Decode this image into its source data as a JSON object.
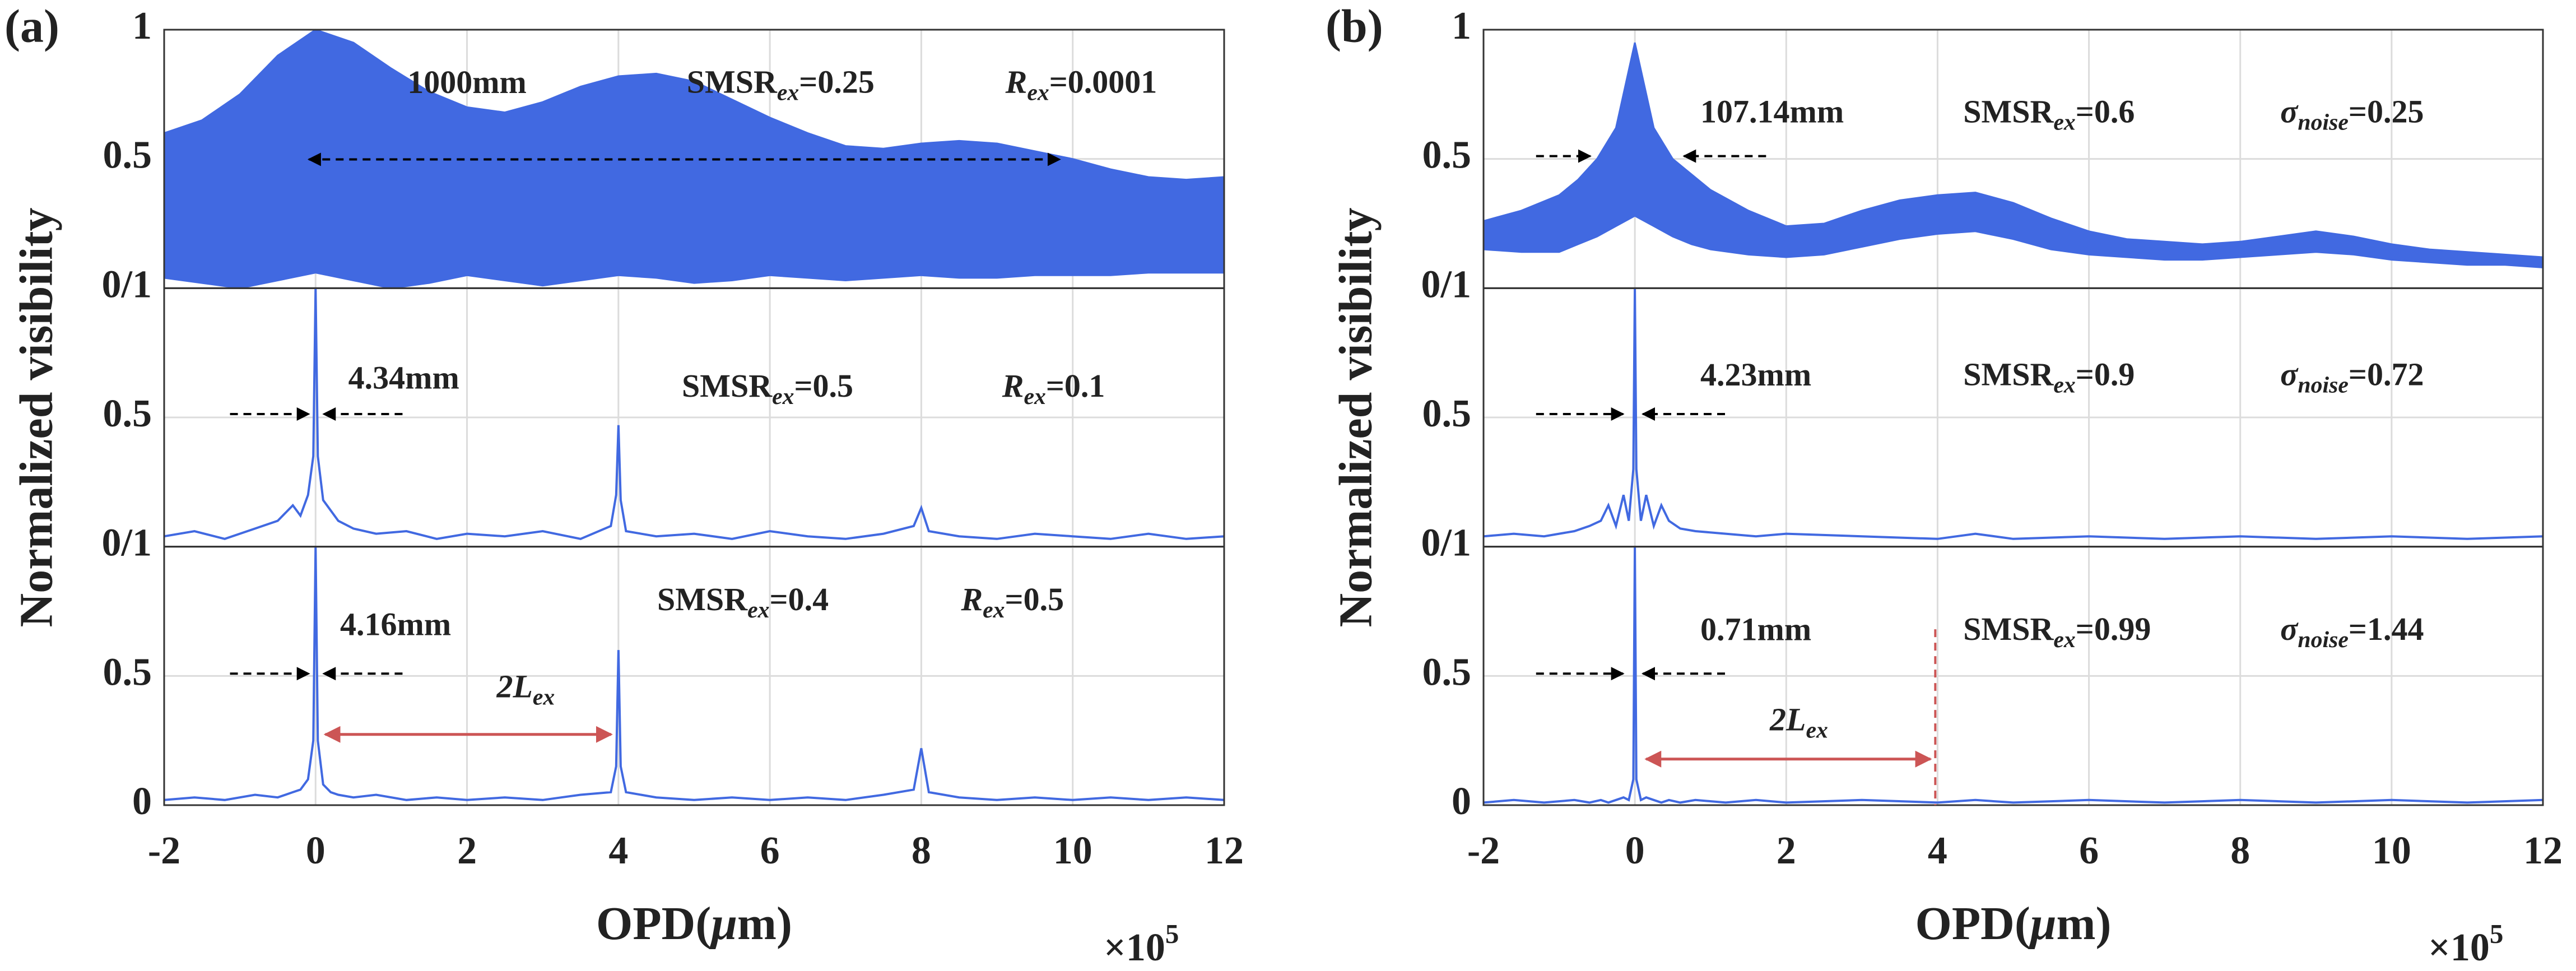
{
  "chart_data": [
    {
      "type": "stacked",
      "label": "(a)",
      "ylabel": "Normalized visibility",
      "xlabel": {
        "pre": "OPD(",
        "symbol": "μ",
        "post": "m)"
      },
      "x_multiplier": {
        "base": "×10",
        "exponent": "5"
      },
      "xlim": [
        -2,
        12
      ],
      "xticks": [
        -2,
        0,
        2,
        4,
        6,
        8,
        10,
        12
      ],
      "grid": true,
      "subplots": [
        {
          "type": "band",
          "color": "#4169e1",
          "ylim": [
            0,
            1
          ],
          "yticks": [
            {
              "value": 0,
              "label": "0/1"
            },
            0.5,
            1
          ],
          "x": [
            -2,
            -1.5,
            -1,
            -0.5,
            0,
            0.5,
            1,
            1.5,
            2,
            2.5,
            3,
            3.5,
            4,
            4.5,
            5,
            5.5,
            6,
            6.5,
            7,
            7.5,
            8,
            8.5,
            9,
            9.5,
            10,
            10.5,
            11,
            11.5,
            12
          ],
          "upper": [
            0.6,
            0.65,
            0.75,
            0.9,
            1,
            0.95,
            0.85,
            0.76,
            0.7,
            0.68,
            0.72,
            0.78,
            0.82,
            0.83,
            0.8,
            0.73,
            0.66,
            0.6,
            0.55,
            0.54,
            0.56,
            0.57,
            0.56,
            0.53,
            0.5,
            0.46,
            0.43,
            0.42,
            0.43
          ],
          "lower": [
            0.04,
            0.02,
            0,
            0.03,
            0.06,
            0.03,
            0,
            0.02,
            0.05,
            0.03,
            0.01,
            0.03,
            0.05,
            0.04,
            0.02,
            0.03,
            0.05,
            0.04,
            0.03,
            0.04,
            0.05,
            0.04,
            0.04,
            0.05,
            0.05,
            0.05,
            0.06,
            0.06,
            0.06
          ],
          "width_label": "1000mm",
          "smsr": {
            "text": "SMSR",
            "sub": "ex",
            "value": "=0.25"
          },
          "param": {
            "symbol": "R",
            "sub": "ex",
            "value": "=0.0001"
          }
        },
        {
          "type": "line",
          "color": "#4169e1",
          "ylim": [
            0,
            1
          ],
          "yticks": [
            {
              "value": 0,
              "label": "0/1"
            },
            0.5
          ],
          "x": [
            -2,
            -1.6,
            -1.2,
            -0.8,
            -0.5,
            -0.3,
            -0.2,
            -0.1,
            -0.03,
            0,
            0.03,
            0.1,
            0.2,
            0.3,
            0.5,
            0.8,
            1.2,
            1.6,
            2,
            2.5,
            3,
            3.5,
            3.9,
            3.97,
            4,
            4.03,
            4.1,
            4.5,
            5,
            5.5,
            6,
            6.5,
            7,
            7.5,
            7.9,
            8,
            8.1,
            8.5,
            9,
            9.5,
            10,
            10.5,
            11,
            11.5,
            12
          ],
          "values": [
            0.04,
            0.06,
            0.03,
            0.07,
            0.1,
            0.16,
            0.12,
            0.2,
            0.35,
            1,
            0.35,
            0.18,
            0.14,
            0.1,
            0.07,
            0.05,
            0.06,
            0.03,
            0.05,
            0.04,
            0.06,
            0.03,
            0.08,
            0.2,
            0.47,
            0.18,
            0.06,
            0.04,
            0.05,
            0.03,
            0.06,
            0.04,
            0.03,
            0.05,
            0.08,
            0.15,
            0.06,
            0.04,
            0.03,
            0.05,
            0.04,
            0.03,
            0.05,
            0.03,
            0.04
          ],
          "width_label": "4.34mm",
          "smsr": {
            "text": "SMSR",
            "sub": "ex",
            "value": "=0.5"
          },
          "param": {
            "symbol": "R",
            "sub": "ex",
            "value": "=0.1"
          }
        },
        {
          "type": "line",
          "color": "#4169e1",
          "ylim": [
            0,
            1
          ],
          "yticks": [
            0,
            0.5
          ],
          "x": [
            -2,
            -1.6,
            -1.2,
            -0.8,
            -0.5,
            -0.3,
            -0.2,
            -0.1,
            -0.03,
            0,
            0.03,
            0.1,
            0.2,
            0.3,
            0.5,
            0.8,
            1.2,
            1.6,
            2,
            2.5,
            3,
            3.5,
            3.9,
            3.97,
            4,
            4.03,
            4.1,
            4.5,
            5,
            5.5,
            6,
            6.5,
            7,
            7.5,
            7.9,
            8,
            8.1,
            8.5,
            9,
            9.5,
            10,
            10.5,
            11,
            11.5,
            12
          ],
          "values": [
            0.02,
            0.03,
            0.02,
            0.04,
            0.03,
            0.05,
            0.06,
            0.1,
            0.25,
            1,
            0.25,
            0.08,
            0.05,
            0.04,
            0.03,
            0.04,
            0.02,
            0.03,
            0.02,
            0.03,
            0.02,
            0.04,
            0.05,
            0.15,
            0.6,
            0.15,
            0.05,
            0.03,
            0.02,
            0.03,
            0.02,
            0.03,
            0.02,
            0.04,
            0.06,
            0.22,
            0.05,
            0.03,
            0.02,
            0.03,
            0.02,
            0.03,
            0.02,
            0.03,
            0.02
          ],
          "width_label": "4.16mm",
          "smsr": {
            "text": "SMSR",
            "sub": "ex",
            "value": "=0.4"
          },
          "param": {
            "symbol": "R",
            "sub": "ex",
            "value": "=0.5"
          },
          "span_label": {
            "text": "2L",
            "sub": "ex"
          }
        }
      ]
    },
    {
      "type": "stacked",
      "label": "(b)",
      "ylabel": "Normalized visibility",
      "xlabel": {
        "pre": "OPD(",
        "symbol": "μ",
        "post": "m)"
      },
      "x_multiplier": {
        "base": "×10",
        "exponent": "5"
      },
      "xlim": [
        -2,
        12
      ],
      "xticks": [
        -2,
        0,
        2,
        4,
        6,
        8,
        10,
        12
      ],
      "grid": true,
      "subplots": [
        {
          "type": "band",
          "color": "#4169e1",
          "ylim": [
            0,
            1
          ],
          "yticks": [
            {
              "value": 0,
              "label": "0/1"
            },
            0.5,
            1
          ],
          "x": [
            -2,
            -1.5,
            -1,
            -0.75,
            -0.5,
            -0.25,
            0,
            0.25,
            0.5,
            0.75,
            1,
            1.5,
            2,
            2.5,
            3,
            3.5,
            4,
            4.5,
            5,
            5.5,
            6,
            6.5,
            7,
            7.5,
            8,
            8.5,
            9,
            9.5,
            10,
            10.5,
            11,
            11.5,
            12
          ],
          "upper": [
            0.26,
            0.3,
            0.36,
            0.42,
            0.5,
            0.62,
            0.95,
            0.62,
            0.5,
            0.44,
            0.38,
            0.3,
            0.24,
            0.25,
            0.3,
            0.34,
            0.36,
            0.37,
            0.33,
            0.27,
            0.22,
            0.19,
            0.18,
            0.17,
            0.18,
            0.2,
            0.22,
            0.2,
            0.17,
            0.15,
            0.14,
            0.13,
            0.12
          ],
          "lower": [
            0.15,
            0.14,
            0.14,
            0.17,
            0.2,
            0.24,
            0.28,
            0.24,
            0.2,
            0.17,
            0.15,
            0.13,
            0.12,
            0.13,
            0.16,
            0.19,
            0.21,
            0.22,
            0.19,
            0.15,
            0.13,
            0.12,
            0.11,
            0.11,
            0.12,
            0.13,
            0.14,
            0.13,
            0.11,
            0.1,
            0.09,
            0.09,
            0.08
          ],
          "width_label": "107.14mm",
          "smsr": {
            "text": "SMSR",
            "sub": "ex",
            "value": "=0.6"
          },
          "param": {
            "symbol": "σ",
            "sub": "noise",
            "value": "=0.25"
          }
        },
        {
          "type": "line",
          "color": "#4169e1",
          "ylim": [
            0,
            1
          ],
          "yticks": [
            {
              "value": 0,
              "label": "0/1"
            },
            0.5
          ],
          "x": [
            -2,
            -1.6,
            -1.2,
            -0.8,
            -0.6,
            -0.45,
            -0.35,
            -0.25,
            -0.15,
            -0.08,
            -0.02,
            0,
            0.02,
            0.08,
            0.15,
            0.25,
            0.35,
            0.45,
            0.6,
            0.8,
            1.2,
            1.6,
            2,
            3,
            4,
            4.5,
            5,
            6,
            7,
            8,
            9,
            10,
            11,
            12
          ],
          "values": [
            0.04,
            0.05,
            0.04,
            0.06,
            0.08,
            0.1,
            0.16,
            0.08,
            0.2,
            0.1,
            0.3,
            1,
            0.3,
            0.1,
            0.2,
            0.08,
            0.16,
            0.1,
            0.07,
            0.06,
            0.05,
            0.04,
            0.05,
            0.04,
            0.03,
            0.05,
            0.03,
            0.04,
            0.03,
            0.04,
            0.03,
            0.04,
            0.03,
            0.04
          ],
          "width_label": "4.23mm",
          "smsr": {
            "text": "SMSR",
            "sub": "ex",
            "value": "=0.9"
          },
          "param": {
            "symbol": "σ",
            "sub": "noise",
            "value": "=0.72"
          }
        },
        {
          "type": "line",
          "color": "#4169e1",
          "ylim": [
            0,
            1
          ],
          "yticks": [
            0,
            0.5
          ],
          "x": [
            -2,
            -1.6,
            -1.2,
            -0.8,
            -0.6,
            -0.45,
            -0.35,
            -0.25,
            -0.15,
            -0.08,
            -0.02,
            0,
            0.02,
            0.08,
            0.15,
            0.25,
            0.35,
            0.45,
            0.6,
            0.8,
            1.2,
            1.6,
            2,
            3,
            4,
            4.5,
            5,
            6,
            7,
            8,
            9,
            10,
            11,
            12
          ],
          "values": [
            0.01,
            0.02,
            0.01,
            0.02,
            0.01,
            0.02,
            0.01,
            0.02,
            0.03,
            0.02,
            0.1,
            1,
            0.1,
            0.02,
            0.03,
            0.02,
            0.01,
            0.02,
            0.01,
            0.02,
            0.01,
            0.02,
            0.01,
            0.02,
            0.01,
            0.02,
            0.01,
            0.02,
            0.01,
            0.02,
            0.01,
            0.02,
            0.01,
            0.02
          ],
          "width_label": "0.71mm",
          "smsr": {
            "text": "SMSR",
            "sub": "ex",
            "value": "=0.99"
          },
          "param": {
            "symbol": "σ",
            "sub": "noise",
            "value": "=1.44"
          },
          "span_label": {
            "text": "2L",
            "sub": "ex"
          }
        }
      ]
    }
  ]
}
